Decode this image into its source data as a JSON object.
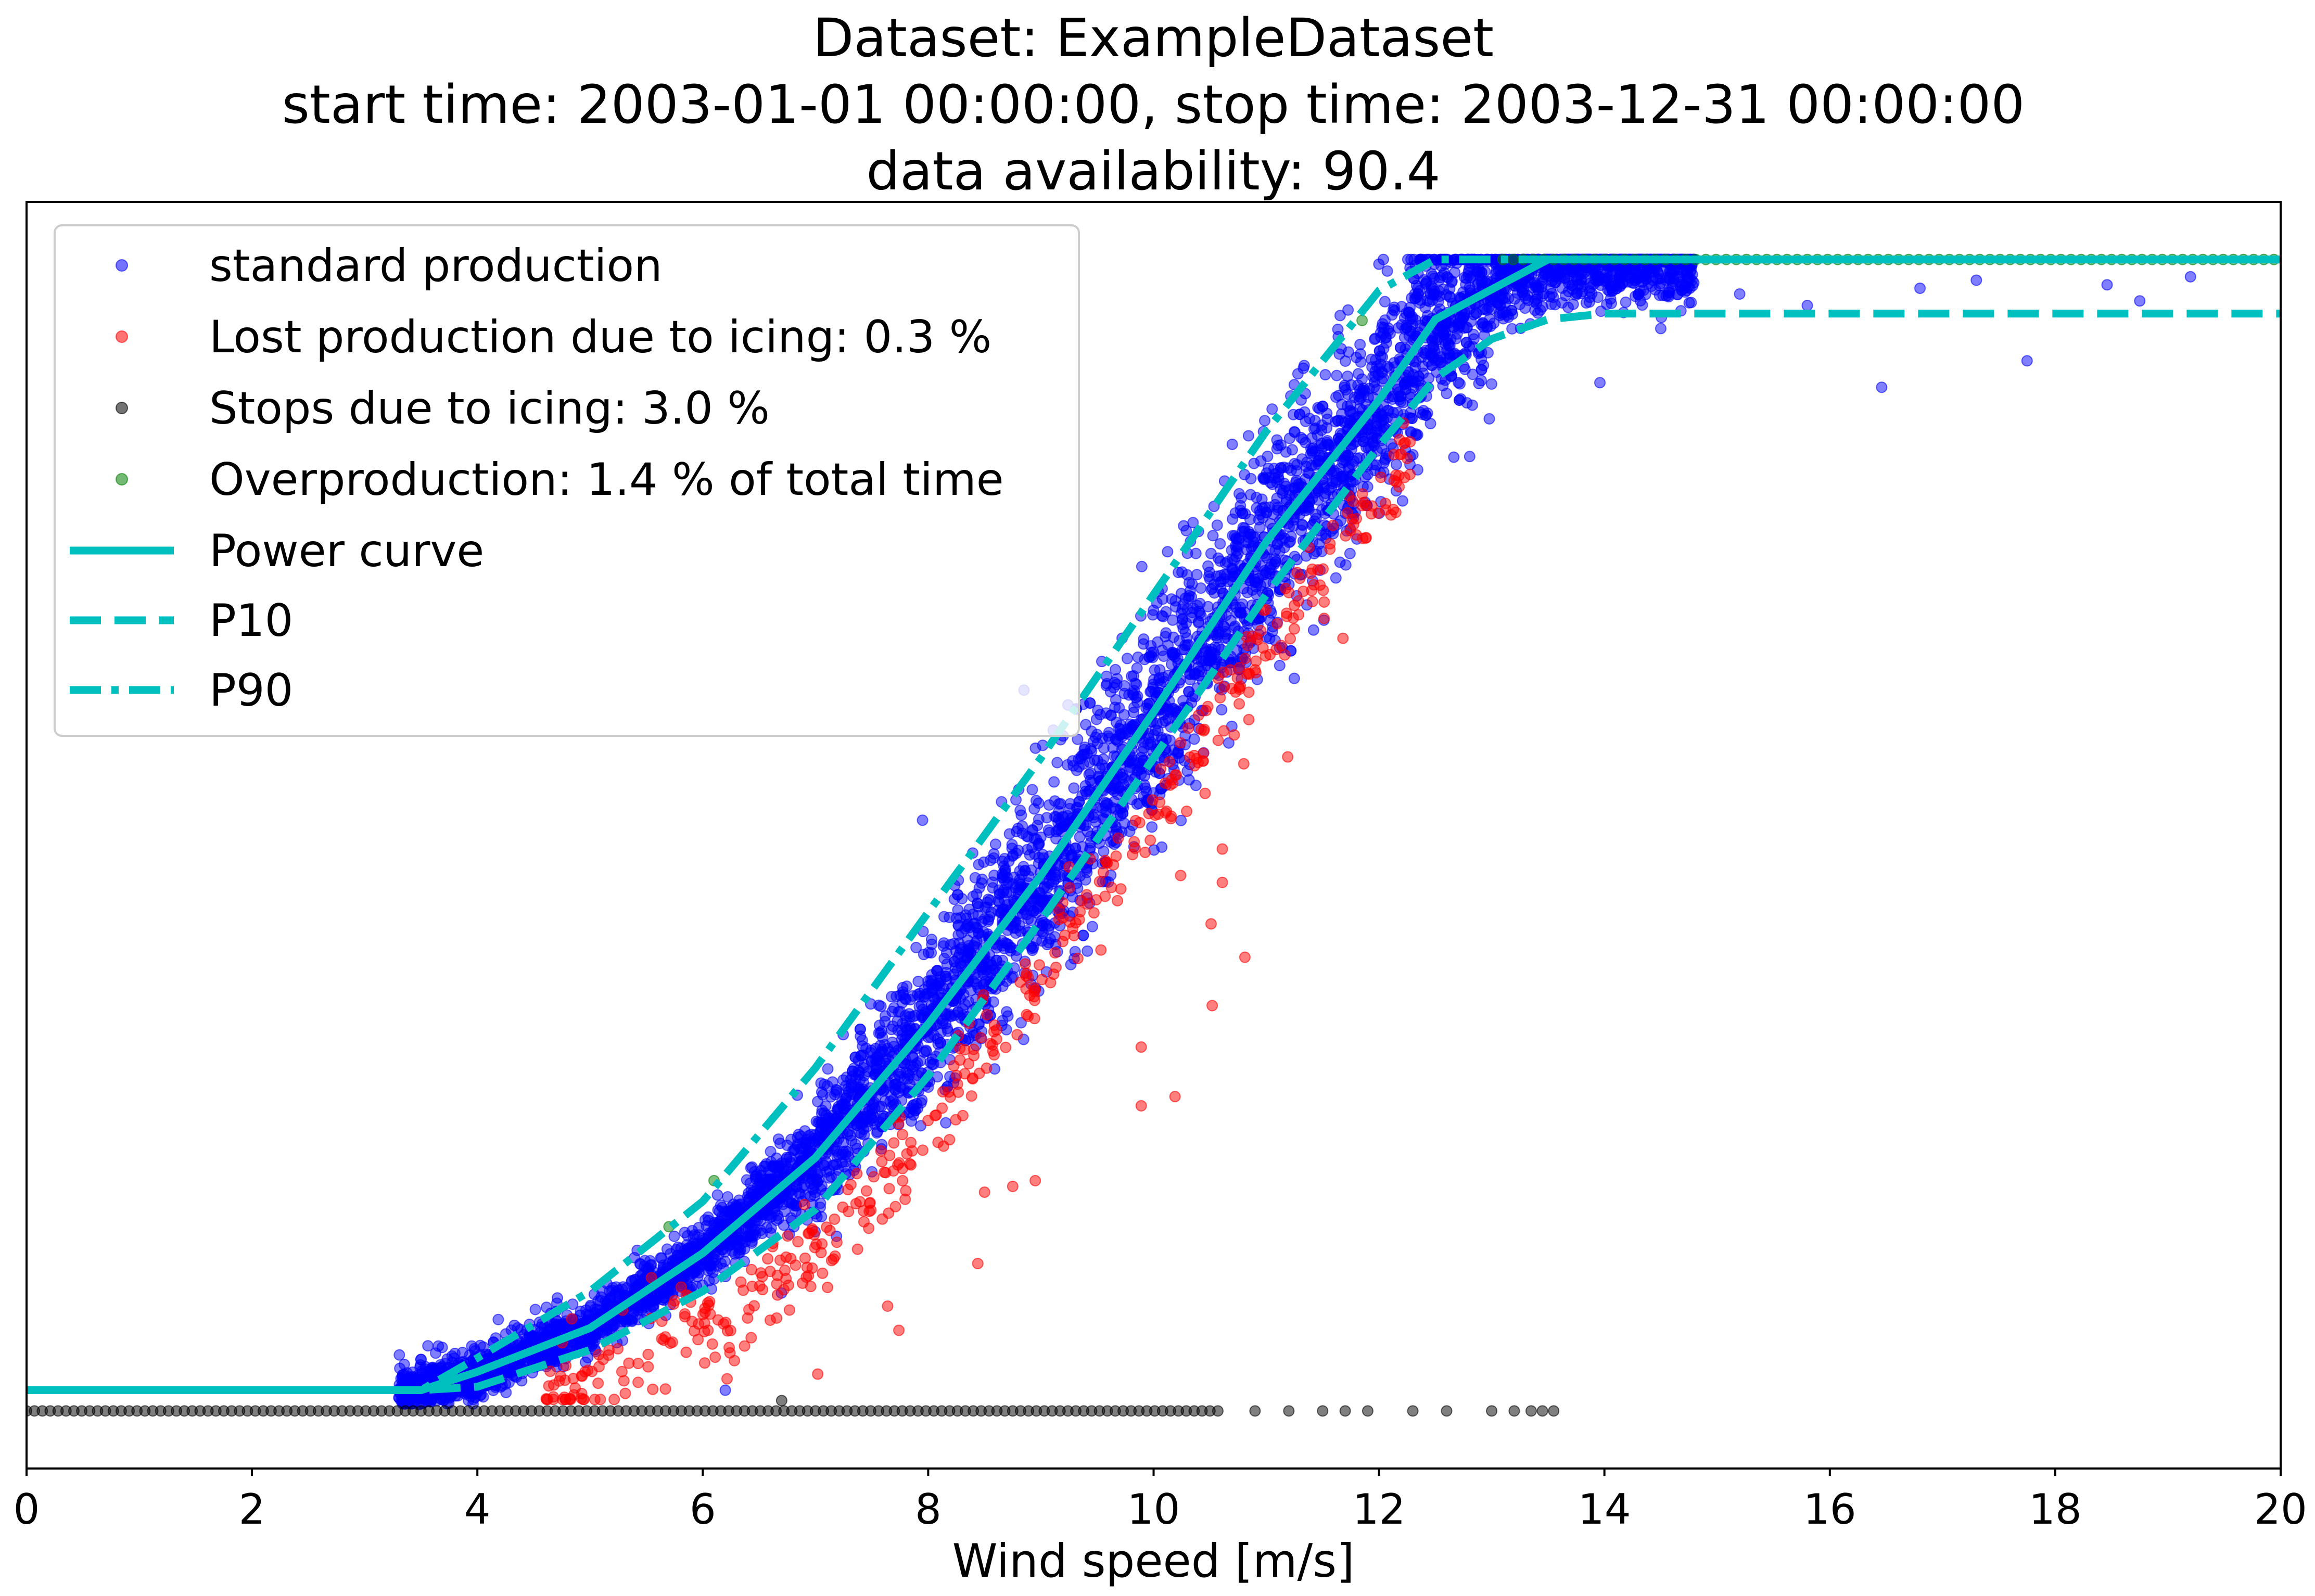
{
  "chart_data": {
    "type": "scatter",
    "title_lines": [
      "Dataset: ExampleDataset",
      "start time: 2003-01-01 00:00:00, stop time: 2003-12-31 00:00:00",
      "data availability: 90.4"
    ],
    "xlabel": "Wind speed [m/s]",
    "ylabel": "",
    "xlim": [
      0,
      20
    ],
    "ylim": [
      -0.05,
      1.05
    ],
    "x_ticks": [
      0,
      2,
      4,
      6,
      8,
      10,
      12,
      14,
      16,
      18,
      20
    ],
    "x_tick_labels": [
      "0",
      "2",
      "4",
      "6",
      "8",
      "10",
      "12",
      "14",
      "16",
      "18",
      "20"
    ],
    "y_ticks_visible": false,
    "grid": false,
    "legend_position": "top-left",
    "colors": {
      "standard": "#0000ff",
      "icing_loss": "#ff0000",
      "stops": "#000000",
      "overproduction": "#008000",
      "curve": "#00bfbf"
    },
    "legend": [
      {
        "label": "standard production",
        "kind": "marker",
        "color": "#0000ff"
      },
      {
        "label": "Lost production due to icing: 0.3 %",
        "kind": "marker",
        "color": "#ff0000"
      },
      {
        "label": "Stops due to icing: 3.0 %",
        "kind": "marker",
        "color": "#000000"
      },
      {
        "label": "Overproduction: 1.4 % of total time",
        "kind": "marker",
        "color": "#008000"
      },
      {
        "label": "Power curve",
        "kind": "solid",
        "color": "#00bfbf"
      },
      {
        "label": "P10",
        "kind": "dashed",
        "color": "#00bfbf"
      },
      {
        "label": "P90",
        "kind": "dashdot",
        "color": "#00bfbf"
      }
    ],
    "lines": {
      "power_curve": {
        "x": [
          0,
          3.5,
          4,
          5,
          6,
          7,
          8,
          9,
          10,
          11,
          12,
          12.5,
          13,
          13.5,
          20
        ],
        "y": [
          0.018,
          0.018,
          0.034,
          0.072,
          0.137,
          0.22,
          0.336,
          0.465,
          0.607,
          0.755,
          0.878,
          0.948,
          0.974,
          1.0,
          1.0
        ]
      },
      "p10": {
        "x": [
          0,
          3.5,
          4,
          5,
          6,
          7,
          8,
          9,
          10,
          11,
          12,
          12.5,
          13,
          13.5,
          14,
          20
        ],
        "y": [
          0.018,
          0.018,
          0.021,
          0.053,
          0.104,
          0.175,
          0.291,
          0.426,
          0.567,
          0.709,
          0.838,
          0.897,
          0.931,
          0.948,
          0.953,
          0.953
        ]
      },
      "p90": {
        "x": [
          0,
          3.5,
          4,
          5,
          6,
          7,
          8,
          9,
          10,
          11,
          12,
          12.5,
          20
        ],
        "y": [
          0.018,
          0.018,
          0.046,
          0.104,
          0.182,
          0.298,
          0.433,
          0.567,
          0.709,
          0.851,
          0.973,
          1.0,
          1.0
        ]
      }
    },
    "scatter_cloud": {
      "standard": {
        "count": 6000,
        "x_range": [
          3.3,
          14.8
        ],
        "spread": 0.075
      },
      "icing_loss": {
        "count": 450,
        "x_range": [
          4.6,
          12.3
        ],
        "offset": -0.045,
        "spread": 0.02
      },
      "stops_dense": {
        "x_range": [
          0,
          10.6
        ],
        "step": 0.07
      },
      "overproduction": {
        "x_range": [
          13.1,
          20
        ],
        "step": 0.09
      }
    },
    "points": {
      "standard_outliers": [
        [
          16.46,
          0.889
        ],
        [
          17.75,
          0.912
        ],
        [
          18.75,
          0.964
        ],
        [
          18.46,
          0.978
        ],
        [
          13.96,
          0.893
        ],
        [
          8.85,
          0.626
        ],
        [
          7.95,
          0.513
        ],
        [
          6.2,
          0.018
        ],
        [
          15.2,
          0.97
        ],
        [
          16.8,
          0.975
        ],
        [
          19.2,
          0.985
        ],
        [
          14.5,
          0.94
        ],
        [
          15.8,
          0.96
        ],
        [
          17.3,
          0.982
        ]
      ],
      "icing_loss_outliers": [
        [
          10.61,
          0.488
        ],
        [
          10.61,
          0.459
        ],
        [
          10.51,
          0.423
        ],
        [
          10.81,
          0.394
        ],
        [
          10.52,
          0.352
        ],
        [
          9.89,
          0.316
        ],
        [
          9.89,
          0.265
        ],
        [
          10.19,
          0.273
        ],
        [
          8.44,
          0.128
        ],
        [
          7.74,
          0.07
        ],
        [
          7.64,
          0.091
        ],
        [
          7.02,
          0.032
        ],
        [
          10.24,
          0.465
        ],
        [
          11.19,
          0.568
        ],
        [
          10.8,
          0.562
        ],
        [
          11.68,
          0.671
        ],
        [
          8.5,
          0.19
        ],
        [
          8.75,
          0.195
        ],
        [
          8.95,
          0.2
        ]
      ],
      "stops_sparse": [
        [
          10.9,
          0
        ],
        [
          11.2,
          0
        ],
        [
          11.5,
          0
        ],
        [
          11.7,
          0
        ],
        [
          11.9,
          0
        ],
        [
          12.3,
          0
        ],
        [
          12.6,
          0
        ],
        [
          13.0,
          0
        ],
        [
          13.2,
          0
        ],
        [
          13.35,
          0
        ],
        [
          13.45,
          0
        ],
        [
          13.55,
          0
        ],
        [
          6.7,
          0.009
        ]
      ],
      "overproduction_extra": [
        [
          11.85,
          0.947
        ],
        [
          5.7,
          0.16
        ],
        [
          6.1,
          0.2
        ]
      ]
    }
  }
}
